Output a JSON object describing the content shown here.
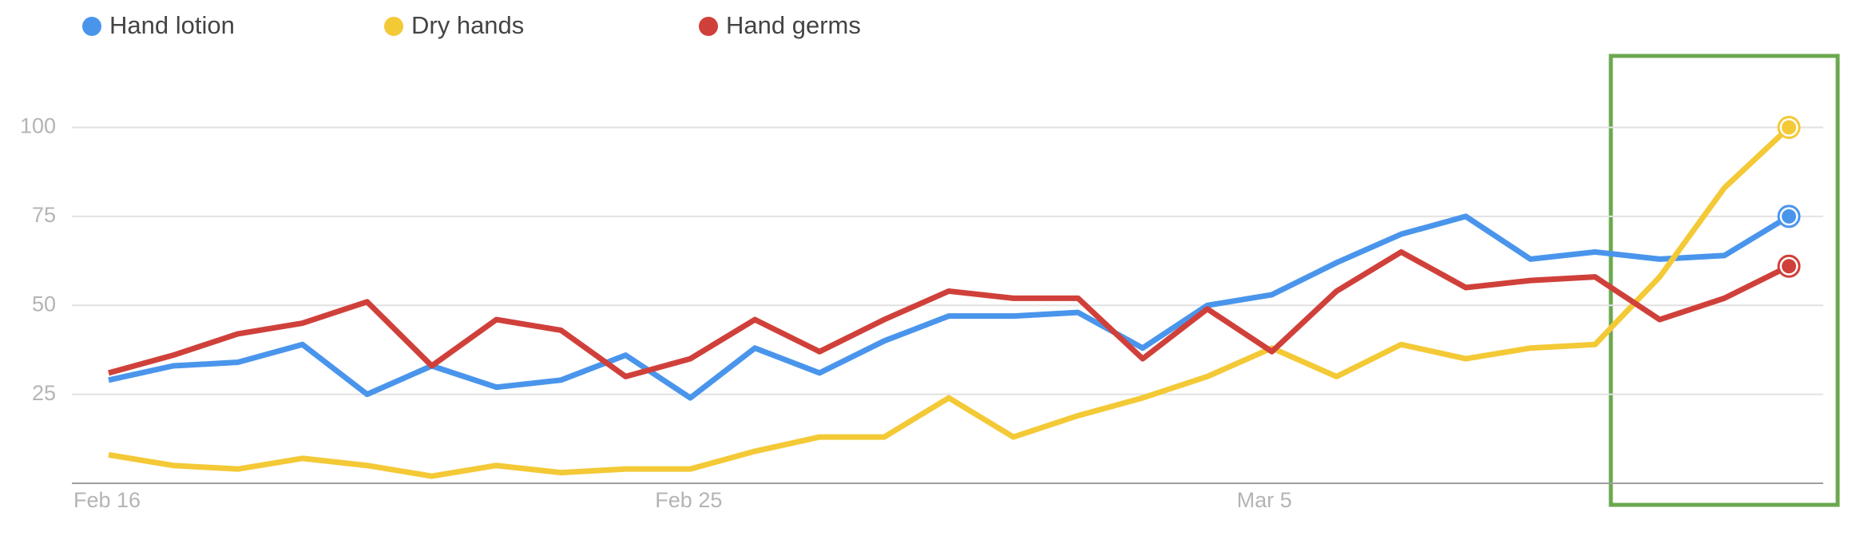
{
  "chart_data": {
    "type": "line",
    "categories": [
      "Feb 16",
      null,
      null,
      null,
      null,
      null,
      null,
      null,
      null,
      "Feb 25",
      null,
      null,
      null,
      null,
      null,
      null,
      null,
      null,
      "Mar 5",
      null,
      null,
      null,
      null,
      null,
      null,
      null,
      null
    ],
    "series": [
      {
        "name": "Hand lotion",
        "color": "#4a95ec",
        "values": [
          29,
          33,
          34,
          39,
          25,
          33,
          27,
          29,
          36,
          24,
          38,
          31,
          40,
          47,
          47,
          48,
          38,
          50,
          53,
          62,
          70,
          75,
          63,
          65,
          63,
          64,
          75
        ]
      },
      {
        "name": "Dry hands",
        "color": "#f4c936",
        "values": [
          8,
          5,
          4,
          7,
          5,
          2,
          5,
          3,
          4,
          4,
          9,
          13,
          13,
          24,
          13,
          19,
          24,
          30,
          38,
          30,
          39,
          35,
          38,
          39,
          58,
          83,
          100
        ]
      },
      {
        "name": "Hand germs",
        "color": "#d0403a",
        "values": [
          31,
          36,
          42,
          45,
          51,
          33,
          46,
          43,
          30,
          35,
          46,
          37,
          46,
          54,
          52,
          52,
          35,
          49,
          37,
          54,
          65,
          55,
          57,
          58,
          46,
          52,
          61
        ]
      }
    ],
    "ylim": [
      0,
      110
    ],
    "yticks": [
      25,
      50,
      75,
      100
    ],
    "grid": true
  }
}
